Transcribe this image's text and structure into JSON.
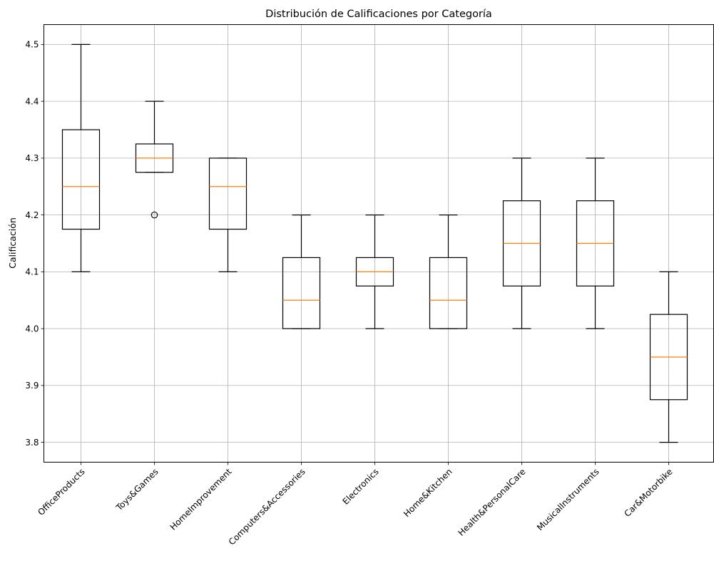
{
  "chart_data": {
    "type": "box",
    "title": "Distribución de Calificaciones por Categoría",
    "xlabel": "",
    "ylabel": "Calificación",
    "ylim": [
      3.765,
      4.535
    ],
    "yticks": [
      "3.8",
      "3.9",
      "4.0",
      "4.1",
      "4.2",
      "4.3",
      "4.4",
      "4.5"
    ],
    "grid": true,
    "colors": {
      "box": "#000000",
      "median": "#ff7f0e",
      "grid": "#b0b0b0"
    },
    "categories": [
      "OfficeProducts",
      "Toys&Games",
      "HomeImprovement",
      "Computers&Accessories",
      "Electronics",
      "Home&Kitchen",
      "Health&PersonalCare",
      "MusicalInstruments",
      "Car&Motorbike"
    ],
    "boxes": [
      {
        "whisker_low": 4.1,
        "q1": 4.175,
        "median": 4.25,
        "q3": 4.35,
        "whisker_high": 4.5,
        "outliers": []
      },
      {
        "whisker_low": 4.275,
        "q1": 4.275,
        "median": 4.3,
        "q3": 4.325,
        "whisker_high": 4.4,
        "outliers": [
          4.2
        ]
      },
      {
        "whisker_low": 4.1,
        "q1": 4.175,
        "median": 4.25,
        "q3": 4.3,
        "whisker_high": 4.3,
        "outliers": []
      },
      {
        "whisker_low": 4.0,
        "q1": 4.0,
        "median": 4.05,
        "q3": 4.125,
        "whisker_high": 4.2,
        "outliers": []
      },
      {
        "whisker_low": 4.0,
        "q1": 4.075,
        "median": 4.1,
        "q3": 4.125,
        "whisker_high": 4.2,
        "outliers": []
      },
      {
        "whisker_low": 4.0,
        "q1": 4.0,
        "median": 4.05,
        "q3": 4.125,
        "whisker_high": 4.2,
        "outliers": []
      },
      {
        "whisker_low": 4.0,
        "q1": 4.075,
        "median": 4.15,
        "q3": 4.225,
        "whisker_high": 4.3,
        "outliers": []
      },
      {
        "whisker_low": 4.0,
        "q1": 4.075,
        "median": 4.15,
        "q3": 4.225,
        "whisker_high": 4.3,
        "outliers": []
      },
      {
        "whisker_low": 3.8,
        "q1": 3.875,
        "median": 3.95,
        "q3": 4.025,
        "whisker_high": 4.1,
        "outliers": []
      }
    ]
  }
}
